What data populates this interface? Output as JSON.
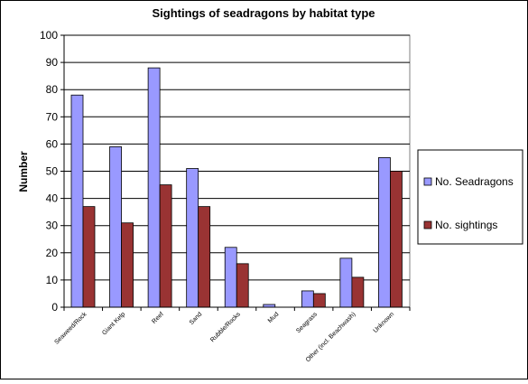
{
  "chart_data": {
    "type": "bar",
    "title": "Sightings of seadragons by habitat type",
    "ylabel": "Number",
    "xlabel": "",
    "ylim": [
      0,
      100
    ],
    "y_ticks": [
      0,
      10,
      20,
      30,
      40,
      50,
      60,
      70,
      80,
      90,
      100
    ],
    "grid": true,
    "legend_position": "right",
    "categories": [
      "Seaweed/Rock",
      "Giant Kelp",
      "Reef",
      "Sand",
      "Rubble/Rocks",
      "Mud",
      "Seagrass",
      "Other (incl. Beachwash)",
      "Unknown"
    ],
    "series": [
      {
        "name": "No. Seadragons",
        "color": "#9999ff",
        "values": [
          78,
          59,
          88,
          51,
          22,
          1,
          6,
          18,
          55
        ]
      },
      {
        "name": "No. sightings",
        "color": "#993333",
        "values": [
          37,
          31,
          45,
          37,
          16,
          0,
          5,
          11,
          50
        ]
      }
    ]
  }
}
